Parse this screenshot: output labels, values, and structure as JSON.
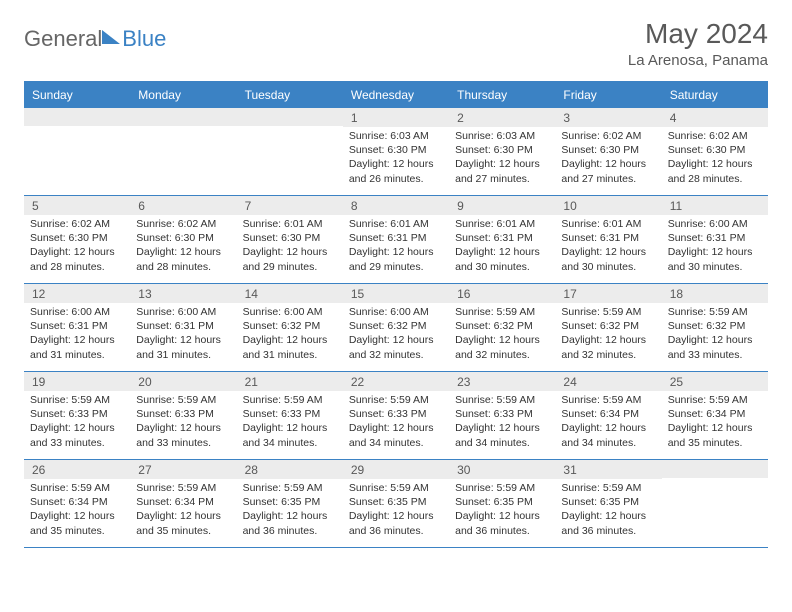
{
  "logo": {
    "part1": "General",
    "part2": "Blue"
  },
  "title": "May 2024",
  "location": "La Arenosa, Panama",
  "header_bg": "#3b82c4",
  "header_text_color": "#ffffff",
  "daynum_bg": "#ececec",
  "border_color": "#3b82c4",
  "weekdays": [
    "Sunday",
    "Monday",
    "Tuesday",
    "Wednesday",
    "Thursday",
    "Friday",
    "Saturday"
  ],
  "weeks": [
    [
      {
        "num": "",
        "sunrise": "",
        "sunset": "",
        "daylight": ""
      },
      {
        "num": "",
        "sunrise": "",
        "sunset": "",
        "daylight": ""
      },
      {
        "num": "",
        "sunrise": "",
        "sunset": "",
        "daylight": ""
      },
      {
        "num": "1",
        "sunrise": "Sunrise: 6:03 AM",
        "sunset": "Sunset: 6:30 PM",
        "daylight": "Daylight: 12 hours and 26 minutes."
      },
      {
        "num": "2",
        "sunrise": "Sunrise: 6:03 AM",
        "sunset": "Sunset: 6:30 PM",
        "daylight": "Daylight: 12 hours and 27 minutes."
      },
      {
        "num": "3",
        "sunrise": "Sunrise: 6:02 AM",
        "sunset": "Sunset: 6:30 PM",
        "daylight": "Daylight: 12 hours and 27 minutes."
      },
      {
        "num": "4",
        "sunrise": "Sunrise: 6:02 AM",
        "sunset": "Sunset: 6:30 PM",
        "daylight": "Daylight: 12 hours and 28 minutes."
      }
    ],
    [
      {
        "num": "5",
        "sunrise": "Sunrise: 6:02 AM",
        "sunset": "Sunset: 6:30 PM",
        "daylight": "Daylight: 12 hours and 28 minutes."
      },
      {
        "num": "6",
        "sunrise": "Sunrise: 6:02 AM",
        "sunset": "Sunset: 6:30 PM",
        "daylight": "Daylight: 12 hours and 28 minutes."
      },
      {
        "num": "7",
        "sunrise": "Sunrise: 6:01 AM",
        "sunset": "Sunset: 6:30 PM",
        "daylight": "Daylight: 12 hours and 29 minutes."
      },
      {
        "num": "8",
        "sunrise": "Sunrise: 6:01 AM",
        "sunset": "Sunset: 6:31 PM",
        "daylight": "Daylight: 12 hours and 29 minutes."
      },
      {
        "num": "9",
        "sunrise": "Sunrise: 6:01 AM",
        "sunset": "Sunset: 6:31 PM",
        "daylight": "Daylight: 12 hours and 30 minutes."
      },
      {
        "num": "10",
        "sunrise": "Sunrise: 6:01 AM",
        "sunset": "Sunset: 6:31 PM",
        "daylight": "Daylight: 12 hours and 30 minutes."
      },
      {
        "num": "11",
        "sunrise": "Sunrise: 6:00 AM",
        "sunset": "Sunset: 6:31 PM",
        "daylight": "Daylight: 12 hours and 30 minutes."
      }
    ],
    [
      {
        "num": "12",
        "sunrise": "Sunrise: 6:00 AM",
        "sunset": "Sunset: 6:31 PM",
        "daylight": "Daylight: 12 hours and 31 minutes."
      },
      {
        "num": "13",
        "sunrise": "Sunrise: 6:00 AM",
        "sunset": "Sunset: 6:31 PM",
        "daylight": "Daylight: 12 hours and 31 minutes."
      },
      {
        "num": "14",
        "sunrise": "Sunrise: 6:00 AM",
        "sunset": "Sunset: 6:32 PM",
        "daylight": "Daylight: 12 hours and 31 minutes."
      },
      {
        "num": "15",
        "sunrise": "Sunrise: 6:00 AM",
        "sunset": "Sunset: 6:32 PM",
        "daylight": "Daylight: 12 hours and 32 minutes."
      },
      {
        "num": "16",
        "sunrise": "Sunrise: 5:59 AM",
        "sunset": "Sunset: 6:32 PM",
        "daylight": "Daylight: 12 hours and 32 minutes."
      },
      {
        "num": "17",
        "sunrise": "Sunrise: 5:59 AM",
        "sunset": "Sunset: 6:32 PM",
        "daylight": "Daylight: 12 hours and 32 minutes."
      },
      {
        "num": "18",
        "sunrise": "Sunrise: 5:59 AM",
        "sunset": "Sunset: 6:32 PM",
        "daylight": "Daylight: 12 hours and 33 minutes."
      }
    ],
    [
      {
        "num": "19",
        "sunrise": "Sunrise: 5:59 AM",
        "sunset": "Sunset: 6:33 PM",
        "daylight": "Daylight: 12 hours and 33 minutes."
      },
      {
        "num": "20",
        "sunrise": "Sunrise: 5:59 AM",
        "sunset": "Sunset: 6:33 PM",
        "daylight": "Daylight: 12 hours and 33 minutes."
      },
      {
        "num": "21",
        "sunrise": "Sunrise: 5:59 AM",
        "sunset": "Sunset: 6:33 PM",
        "daylight": "Daylight: 12 hours and 34 minutes."
      },
      {
        "num": "22",
        "sunrise": "Sunrise: 5:59 AM",
        "sunset": "Sunset: 6:33 PM",
        "daylight": "Daylight: 12 hours and 34 minutes."
      },
      {
        "num": "23",
        "sunrise": "Sunrise: 5:59 AM",
        "sunset": "Sunset: 6:33 PM",
        "daylight": "Daylight: 12 hours and 34 minutes."
      },
      {
        "num": "24",
        "sunrise": "Sunrise: 5:59 AM",
        "sunset": "Sunset: 6:34 PM",
        "daylight": "Daylight: 12 hours and 34 minutes."
      },
      {
        "num": "25",
        "sunrise": "Sunrise: 5:59 AM",
        "sunset": "Sunset: 6:34 PM",
        "daylight": "Daylight: 12 hours and 35 minutes."
      }
    ],
    [
      {
        "num": "26",
        "sunrise": "Sunrise: 5:59 AM",
        "sunset": "Sunset: 6:34 PM",
        "daylight": "Daylight: 12 hours and 35 minutes."
      },
      {
        "num": "27",
        "sunrise": "Sunrise: 5:59 AM",
        "sunset": "Sunset: 6:34 PM",
        "daylight": "Daylight: 12 hours and 35 minutes."
      },
      {
        "num": "28",
        "sunrise": "Sunrise: 5:59 AM",
        "sunset": "Sunset: 6:35 PM",
        "daylight": "Daylight: 12 hours and 36 minutes."
      },
      {
        "num": "29",
        "sunrise": "Sunrise: 5:59 AM",
        "sunset": "Sunset: 6:35 PM",
        "daylight": "Daylight: 12 hours and 36 minutes."
      },
      {
        "num": "30",
        "sunrise": "Sunrise: 5:59 AM",
        "sunset": "Sunset: 6:35 PM",
        "daylight": "Daylight: 12 hours and 36 minutes."
      },
      {
        "num": "31",
        "sunrise": "Sunrise: 5:59 AM",
        "sunset": "Sunset: 6:35 PM",
        "daylight": "Daylight: 12 hours and 36 minutes."
      },
      {
        "num": "",
        "sunrise": "",
        "sunset": "",
        "daylight": ""
      }
    ]
  ]
}
